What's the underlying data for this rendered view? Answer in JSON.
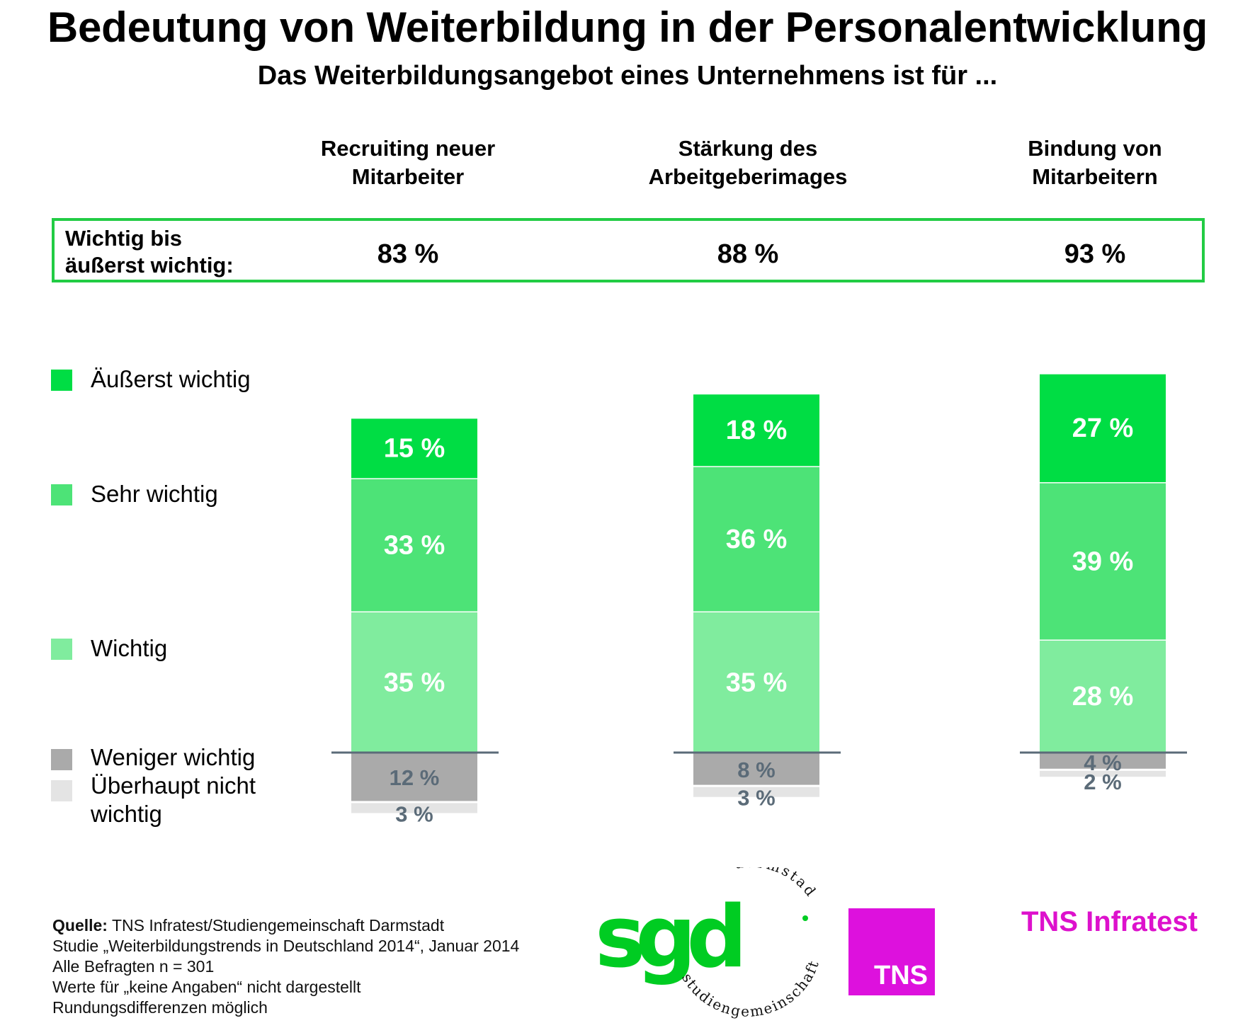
{
  "header": {
    "title": "Bedeutung von Weiterbildung in der Personalentwicklung",
    "subtitle": "Das Weiterbildungsangebot eines Unternehmens ist für ..."
  },
  "summary": {
    "label": "Wichtig bis\näußerst wichtig:",
    "values": [
      "83 %",
      "88 %",
      "93 %"
    ]
  },
  "legend": [
    {
      "label": "Äußerst wichtig",
      "color": "#00dd44"
    },
    {
      "label": "Sehr wichtig",
      "color": "#4de377"
    },
    {
      "label": "Wichtig",
      "color": "#80ec9e"
    },
    {
      "label": "Weniger wichtig",
      "color": "#aaaaaa"
    },
    {
      "label": "Überhaupt nicht\nwichtig",
      "color": "#e4e4e4"
    }
  ],
  "chart_data": {
    "type": "bar",
    "stacked": true,
    "diverging": true,
    "categories": [
      "Recruiting neuer\nMitarbeiter",
      "Stärkung des\nArbeitgeberimages",
      "Bindung von\nMitarbeitern"
    ],
    "series": [
      {
        "name": "Äußerst wichtig",
        "values": [
          15,
          18,
          27
        ],
        "color": "#00dd44",
        "direction": "up"
      },
      {
        "name": "Sehr wichtig",
        "values": [
          33,
          36,
          39
        ],
        "color": "#4de377",
        "direction": "up"
      },
      {
        "name": "Wichtig",
        "values": [
          35,
          35,
          28
        ],
        "color": "#80ec9e",
        "direction": "up"
      },
      {
        "name": "Weniger wichtig",
        "values": [
          12,
          8,
          4
        ],
        "color": "#aaaaaa",
        "direction": "down"
      },
      {
        "name": "Überhaupt nicht wichtig",
        "values": [
          3,
          3,
          2
        ],
        "color": "#e4e4e4",
        "direction": "down"
      }
    ],
    "value_suffix": " %",
    "label_colors": {
      "up": "#ffffff",
      "down": "#5b6b78"
    },
    "baseline_color": "#5b6b78",
    "gridlines": false
  },
  "source": {
    "bold_label": "Quelle:",
    "lines": [
      " TNS Infratest/Studiengemeinschaft Darmstadt",
      "Studie „Weiterbildungstrends in Deutschland 2014“, Januar 2014",
      "Alle Befragten n = 301",
      "Werte für „keine Angaben“ nicht dargestellt",
      "Rundungsdifferenzen möglich"
    ]
  },
  "logos": {
    "sgd_letters": "sgd",
    "sgd_ring_top": "darmstadt",
    "sgd_ring_bottom": "studiengemeinschaft",
    "sgd_color": "#00cc22",
    "tns_box_text": "TNS",
    "tns_box_color": "#dd11dd",
    "tns_brand_text": "TNS Infratest",
    "tns_brand_color": "#dd11cc"
  }
}
